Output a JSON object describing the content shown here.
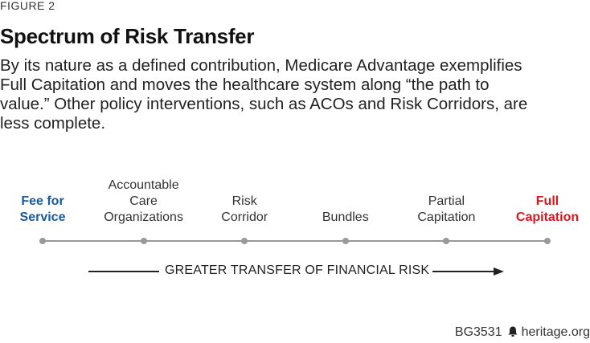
{
  "figure_label": "FIGURE 2",
  "title": "Spectrum of Risk Transfer",
  "description_lines": [
    "By its nature as a defined contribution, Medicare Advantage exemplifies",
    "Full Capitation and moves the healthcare system along “the path to",
    "value.” Other policy interventions, such as ACOs and Risk Corridors, are",
    "less complete."
  ],
  "colors": {
    "blue": "#1a5aa0",
    "red": "#e0141e",
    "axis_gray": "#999999"
  },
  "spectrum": [
    {
      "lines": [
        "Fee for",
        "Service"
      ],
      "color": "blue",
      "emphasis": true
    },
    {
      "lines": [
        "Accountable",
        "Care",
        "Organizations"
      ],
      "color": "default",
      "emphasis": false
    },
    {
      "lines": [
        "Risk",
        "Corridor"
      ],
      "color": "default",
      "emphasis": false
    },
    {
      "lines": [
        "Bundles"
      ],
      "color": "default",
      "emphasis": false
    },
    {
      "lines": [
        "Partial",
        "Capitation"
      ],
      "color": "default",
      "emphasis": false
    },
    {
      "lines": [
        "Full",
        "Capitation"
      ],
      "color": "red",
      "emphasis": true
    }
  ],
  "arrow_label": "GREATER TRANSFER OF FINANCIAL RISK",
  "footer": {
    "code": "BG3531",
    "icon": "bell-icon",
    "site": "heritage.org"
  }
}
